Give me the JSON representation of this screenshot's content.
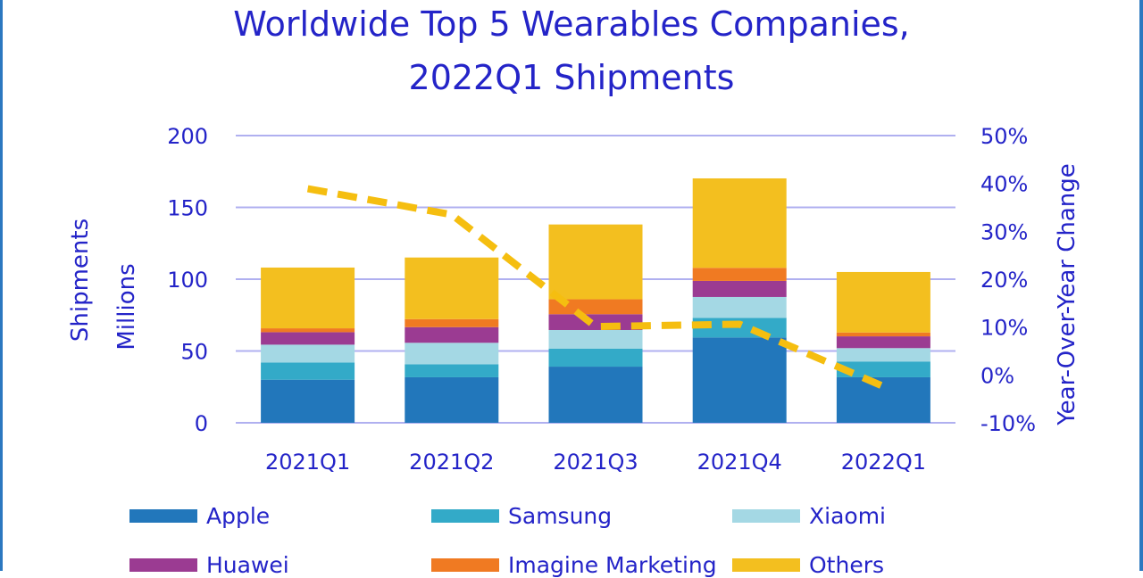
{
  "chart_data": {
    "type": "bar",
    "stacked": true,
    "title": "Worldwide Top 5 Wearables Companies, 2022Q1 Shipments",
    "title_lines": [
      "Worldwide Top 5 Wearables  Companies,",
      "2022Q1 Shipments"
    ],
    "categories": [
      "2021Q1",
      "2021Q2",
      "2021Q3",
      "2021Q4",
      "2022Q1"
    ],
    "ylabel_lines": [
      "Shipments",
      "Millions"
    ],
    "ylim": [
      0,
      200
    ],
    "yticks": [
      0,
      50,
      100,
      150,
      200
    ],
    "y2label": "Year-Over-Year Change",
    "y2lim": [
      -10,
      50
    ],
    "y2ticks": [
      "-10%",
      "0%",
      "10%",
      "20%",
      "30%",
      "40%",
      "50%"
    ],
    "y2tick_values": [
      -10,
      0,
      10,
      20,
      30,
      40,
      50
    ],
    "grid": true,
    "legend_position": "bottom",
    "series": [
      {
        "name": "Apple",
        "color": "#2277bb",
        "values": [
          30.0,
          31.7,
          39.1,
          59.4,
          31.7
        ]
      },
      {
        "name": "Samsung",
        "color": "#33aac8",
        "values": [
          12.0,
          9.1,
          12.6,
          13.7,
          11.0
        ]
      },
      {
        "name": "Xiaomi",
        "color": "#a4d8e4",
        "values": [
          12.4,
          14.9,
          12.9,
          14.5,
          9.3
        ]
      },
      {
        "name": "Huawei",
        "color": "#9b3b92",
        "values": [
          8.7,
          10.9,
          11.0,
          11.2,
          8.2
        ]
      },
      {
        "name": "Imagine Marketing",
        "color": "#f07a22",
        "values": [
          2.7,
          5.6,
          10.4,
          9.1,
          2.7
        ]
      },
      {
        "name": "Others",
        "color": "#f3bf1f",
        "values": [
          42.3,
          42.9,
          52.1,
          62.3,
          42.1
        ]
      }
    ],
    "line": {
      "type": "line",
      "style": "dashed",
      "axis": "right",
      "color": "#f5be10",
      "values": [
        38.9,
        33.5,
        10.1,
        10.6,
        -2.4
      ]
    },
    "gridline_color": "#b0b0f0"
  }
}
